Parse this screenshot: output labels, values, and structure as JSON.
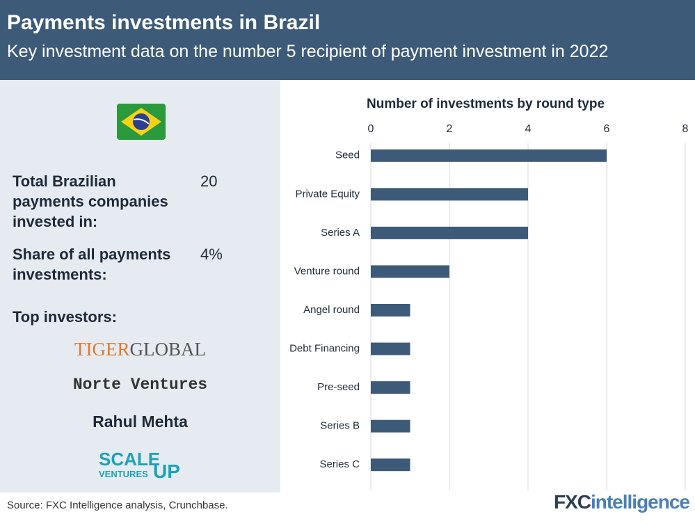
{
  "header": {
    "title": "Payments investments in Brazil",
    "subtitle": "Key investment data on the number 5 recipient of payment investment in 2022"
  },
  "stats": [
    {
      "label": "Total Brazilian payments companies invested in:",
      "value": "20"
    },
    {
      "label": "Share of all payments investments:",
      "value": "4%"
    }
  ],
  "top_investors_label": "Top investors:",
  "investors": {
    "tiger": [
      "TIGER",
      "GLOBAL"
    ],
    "norte": "Norte Ventures",
    "rahul": "Rahul Mehta",
    "scaleup": [
      "SCALE",
      "UP",
      "VENTURES"
    ]
  },
  "chart_data": {
    "type": "bar",
    "orientation": "horizontal",
    "title": "Number of investments by round type",
    "categories": [
      "Seed",
      "Private Equity",
      "Series A",
      "Venture round",
      "Angel round",
      "Debt Financing",
      "Pre-seed",
      "Series B",
      "Series C"
    ],
    "values": [
      6,
      4,
      4,
      2,
      1,
      1,
      1,
      1,
      1
    ],
    "color": "#3d5a78",
    "xlim": [
      0,
      8
    ],
    "xticks": [
      0,
      2,
      4,
      6,
      8
    ],
    "grid": true
  },
  "footer": {
    "source": "Source: FXC Intelligence analysis, Crunchbase.",
    "brand": [
      "FXC",
      "intelligence"
    ]
  }
}
